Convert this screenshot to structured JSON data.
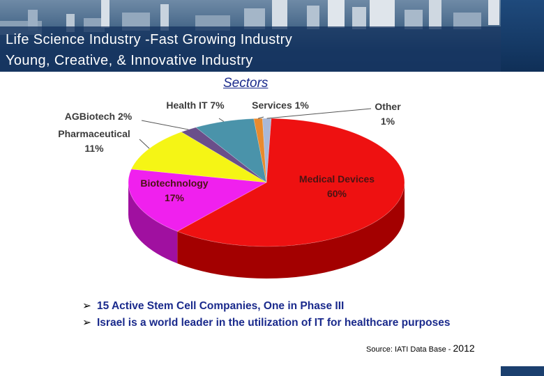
{
  "header": {
    "title_line1": "Life Science Industry -Fast Growing Industry",
    "title_line2": "Young, Creative, & Innovative Industry"
  },
  "chart_data": {
    "type": "pie",
    "title": "Sectors",
    "slices": [
      {
        "name": "Medical Devices",
        "value": 60,
        "label": "Medical Devices",
        "pct": "60%",
        "color": "#ee1111",
        "side": "#a30000"
      },
      {
        "name": "Biotechnology",
        "value": 17,
        "label": "Biotechnology",
        "pct": "17%",
        "color": "#f020ee",
        "side": "#a010a0"
      },
      {
        "name": "Pharmaceutical",
        "value": 11,
        "label": "Pharmaceutical",
        "pct": "11%",
        "color": "#f5f515",
        "side": "#b0b000"
      },
      {
        "name": "AGBiotech",
        "value": 2,
        "label": "AGBiotech 2%",
        "pct": "",
        "color": "#6a4f8a",
        "side": "#3f2d57"
      },
      {
        "name": "Health IT",
        "value": 7,
        "label": "Health IT 7%",
        "pct": "",
        "color": "#4a93aa",
        "side": "#2d6070"
      },
      {
        "name": "Services",
        "value": 1,
        "label": "Services 1%",
        "pct": "",
        "color": "#e88a2e",
        "side": "#a85e18"
      },
      {
        "name": "Other",
        "value": 1,
        "label": "Other",
        "pct": "1%",
        "color": "#a9b8d8",
        "side": "#7080a0"
      }
    ]
  },
  "bullets": [
    "15 Active Stem Cell Companies, One in Phase III",
    "Israel is a world leader in the utilization of IT for healthcare purposes"
  ],
  "source": {
    "text": "Source: IATI Data Base - ",
    "year": "2012"
  }
}
